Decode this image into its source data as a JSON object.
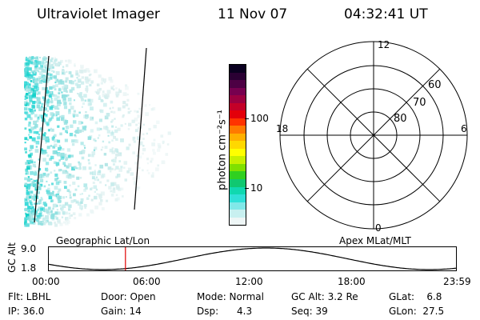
{
  "header": {
    "title": "Ultraviolet Imager",
    "date": "11 Nov 07",
    "time": "04:32:41 UT"
  },
  "colorbar": {
    "unit_label": "photon cm⁻²s⁻¹",
    "ticks": [
      "100",
      "10"
    ],
    "colors": [
      "#0a0020",
      "#2a0033",
      "#4d0044",
      "#77004f",
      "#9c0040",
      "#c40028",
      "#e3000a",
      "#ff3300",
      "#ff7a00",
      "#ffb000",
      "#ffd800",
      "#ffff00",
      "#c8f000",
      "#80e000",
      "#30d020",
      "#10c870",
      "#10d8b0",
      "#30e0d8",
      "#80e8e8",
      "#c8f0f0",
      "#eef6f6"
    ]
  },
  "polar": {
    "mlt_labels": {
      "top": "12",
      "left": "18",
      "right": "6",
      "bottom": "0"
    },
    "lat_labels": [
      "60",
      "70",
      "80"
    ]
  },
  "timeline": {
    "ylabel": "GC Alt",
    "ytick_top": "9.0",
    "ytick_bottom": "1.8",
    "left_caption": "Geographic Lat/Lon",
    "right_caption": "Apex MLat/MLT",
    "xticks": [
      "00:00",
      "06:00",
      "12:00",
      "18:00",
      "23:59"
    ],
    "current_marker_time": "04:32"
  },
  "info": {
    "flt": "Flt: LBHL",
    "door": "Door: Open",
    "mode": "Mode: Normal",
    "gcalt": "GC Alt: 3.2 Re",
    "glat": "GLat:    6.8",
    "ip": "IP: 36.0",
    "gain": "Gain: 14",
    "dsp": "Dsp:      4.3",
    "seq": "Seq: 39",
    "glon": "GLon:  27.5"
  }
}
